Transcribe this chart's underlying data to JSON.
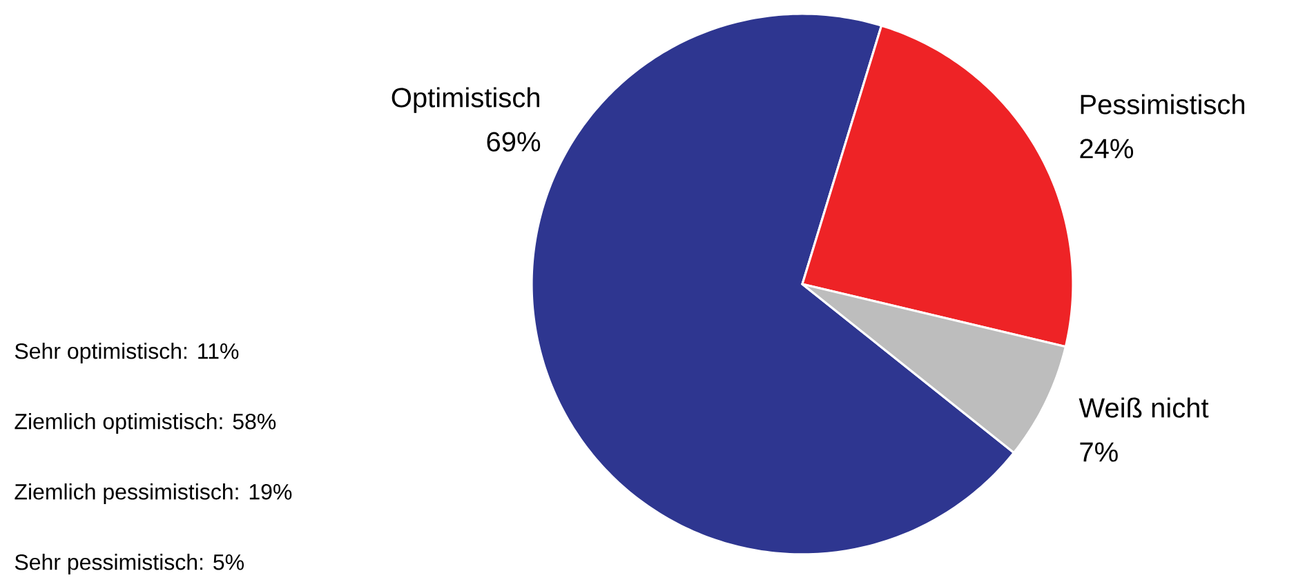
{
  "chart_data": {
    "type": "pie",
    "categories": [
      "Optimistisch",
      "Pessimistisch",
      "Weiß nicht"
    ],
    "values": [
      69,
      24,
      7
    ],
    "colors": [
      "#2e3690",
      "#ee2326",
      "#bdbdbd"
    ],
    "value_labels": [
      "69%",
      "24%",
      "7%"
    ],
    "annotations": [
      "Sehr optimistisch: 11%",
      "Ziemlich optimistisch: 58%",
      "Ziemlich pessimistisch: 19%",
      "Sehr pessimistisch: 5%"
    ]
  }
}
